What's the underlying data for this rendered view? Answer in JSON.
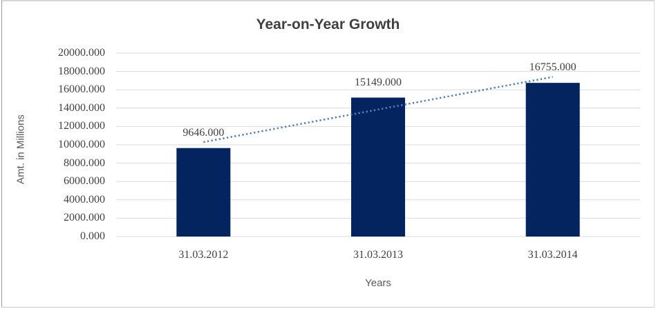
{
  "chart_data": {
    "type": "bar",
    "title": "Year-on-Year Growth",
    "categories": [
      "31.03.2012",
      "31.03.2013",
      "31.03.2014"
    ],
    "values": [
      9646,
      15149,
      16755
    ],
    "data_labels": [
      "9646.000",
      "15149.000",
      "16755.000"
    ],
    "xlabel": "Years",
    "ylabel": "Amt. in Millions",
    "ylim": [
      0,
      20000
    ],
    "ytick_step": 2000,
    "ytick_labels": [
      "20000.000",
      "18000.000",
      "16000.000",
      "14000.000",
      "12000.000",
      "10000.000",
      "8000.000",
      "6000.000",
      "4000.000",
      "2000.000",
      "0.000"
    ],
    "grid": true,
    "legend": "none",
    "trendline": {
      "type": "linear",
      "style": "dotted"
    }
  },
  "colors": {
    "bar": "#04245f",
    "trendline": "#4f81bd",
    "gridline": "#d9d9d9",
    "title_text": "#404040",
    "tick_text": "#3f3f3f",
    "data_label_text": "#404040",
    "axis_title_text": "#595959",
    "background": "#ffffff"
  }
}
